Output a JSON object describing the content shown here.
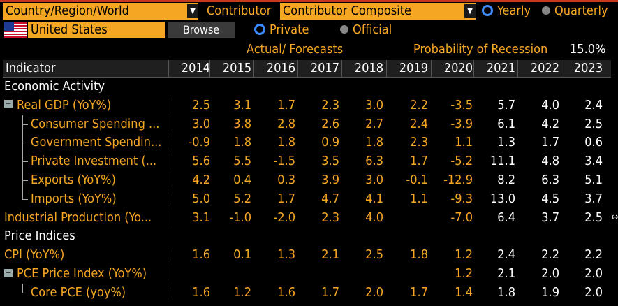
{
  "toolbar": {
    "country_dropdown": "Country/Region/World",
    "contributor_label": "Contributor",
    "contributor_dropdown": "Contributor Composite",
    "yearly_label": "Yearly",
    "quarterly_label": "Quarterly",
    "country_value": "United States",
    "browse_label": "Browse",
    "private_label": "Private",
    "official_label": "Official",
    "flag_icon": "us-flag-icon"
  },
  "subheader": {
    "actual_forecasts": "Actual/ Forecasts",
    "recession_label": "Probability of Recession",
    "recession_value": "15.0%"
  },
  "table": {
    "header_indicator": "Indicator",
    "years": [
      "2014",
      "2015",
      "2016",
      "2017",
      "2018",
      "2019",
      "2020",
      "2021",
      "2022",
      "2023"
    ],
    "rows": [
      {
        "name": "Economic Activity",
        "section": true,
        "values": []
      },
      {
        "name": "Real GDP (YoY%)",
        "expand": true,
        "values": [
          "2.5",
          "3.1",
          "1.7",
          "2.3",
          "3.0",
          "2.2",
          "-3.5",
          "5.7",
          "4.0",
          "2.4"
        ]
      },
      {
        "name": "Consumer Spending ...",
        "child": true,
        "values": [
          "3.0",
          "3.8",
          "2.8",
          "2.6",
          "2.7",
          "2.4",
          "-3.9",
          "6.1",
          "4.2",
          "2.5"
        ]
      },
      {
        "name": "Government Spendin...",
        "child": true,
        "values": [
          "-0.9",
          "1.8",
          "1.8",
          "0.9",
          "1.8",
          "2.3",
          "1.1",
          "1.3",
          "1.7",
          "0.6"
        ]
      },
      {
        "name": "Private Investment (...",
        "child": true,
        "values": [
          "5.6",
          "5.5",
          "-1.5",
          "3.5",
          "6.3",
          "1.7",
          "-5.2",
          "11.1",
          "4.8",
          "3.4"
        ]
      },
      {
        "name": "Exports (YoY%)",
        "child": true,
        "values": [
          "4.2",
          "0.4",
          "0.3",
          "3.9",
          "3.0",
          "-0.1",
          "-12.9",
          "8.2",
          "6.3",
          "5.1"
        ]
      },
      {
        "name": "Imports (YoY%)",
        "child": true,
        "last": true,
        "values": [
          "5.0",
          "5.2",
          "1.7",
          "4.7",
          "4.1",
          "1.1",
          "-9.3",
          "13.0",
          "4.5",
          "3.7"
        ]
      },
      {
        "name": "Industrial Production (Yo...",
        "values": [
          "3.1",
          "-1.0",
          "-2.0",
          "2.3",
          "4.0",
          "",
          "-7.0",
          "6.4",
          "3.7",
          "2.5"
        ]
      },
      {
        "name": "Price Indices",
        "section": true,
        "values": []
      },
      {
        "name": "CPI (YoY%)",
        "values": [
          "1.6",
          "0.1",
          "1.3",
          "2.1",
          "2.5",
          "1.8",
          "1.2",
          "2.4",
          "2.2",
          "2.2"
        ]
      },
      {
        "name": "PCE Price Index (YoY%)",
        "expand": true,
        "values": [
          "",
          "",
          "",
          "",
          "",
          "",
          "1.2",
          "2.1",
          "2.0",
          "2.0"
        ]
      },
      {
        "name": "Core PCE (yoy%)",
        "child": true,
        "last": true,
        "values": [
          "1.6",
          "1.2",
          "1.6",
          "1.7",
          "2.0",
          "1.7",
          "1.4",
          "1.8",
          "1.9",
          "2.0"
        ]
      }
    ]
  },
  "colors": {
    "orange": "#f5a623",
    "white": "#ffffff",
    "header_bg": "#1f1f1f",
    "radio_selected": "#3d8bff"
  }
}
